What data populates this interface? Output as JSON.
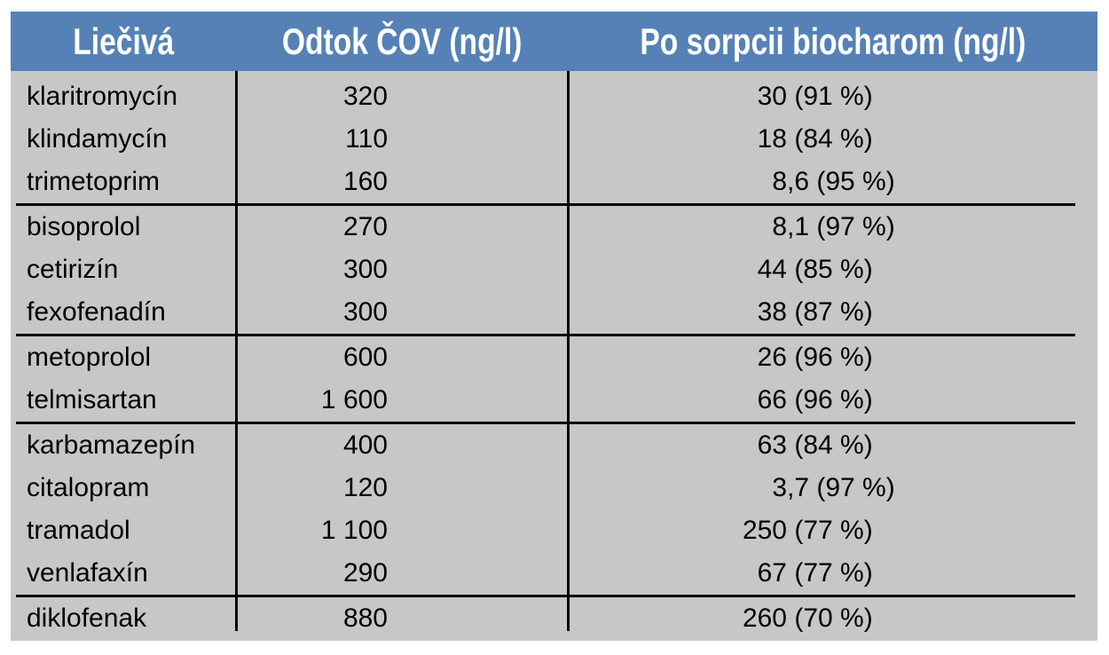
{
  "colors": {
    "page_bg": "#FFFFFF",
    "header_bg": "#5681B6",
    "header_text": "#FFFFFF",
    "body_bg": "#C7C7C7",
    "grid_line": "#000000",
    "body_text": "#000000"
  },
  "chart_data": {
    "type": "table",
    "columns": [
      "Liečivá",
      "Odtok ČOV (ng/l)",
      "Po sorpcii biocharom (ng/l)"
    ],
    "rows": [
      [
        "klaritromycín",
        "320",
        "30 (91 %)"
      ],
      [
        "klindamycín",
        "110",
        "18 (84 %)"
      ],
      [
        "trimetoprim",
        "160",
        "8,6 (95 %)"
      ],
      [
        "bisoprolol",
        "270",
        "8,1 (97 %)"
      ],
      [
        "cetirizín",
        "300",
        "44 (85 %)"
      ],
      [
        "fexofenadín",
        "300",
        "38 (87 %)"
      ],
      [
        "metoprolol",
        "600",
        "26 (96 %)"
      ],
      [
        "telmisartan",
        "1 600",
        "66 (96 %)"
      ],
      [
        "karbamazepín",
        "400",
        "63 (84 %)"
      ],
      [
        "citalopram",
        "120",
        "3,7 (97 %)"
      ],
      [
        "tramadol",
        "1 100",
        "250 (77 %)"
      ],
      [
        "venlafaxín",
        "290",
        "67 (77 %)"
      ],
      [
        "diklofenak",
        "880",
        "260 (70 %)"
      ]
    ],
    "row_group_sizes": [
      3,
      3,
      2,
      4,
      1
    ],
    "numeric": {
      "efflux_cov_ng_l": [
        320,
        110,
        160,
        270,
        300,
        300,
        600,
        1600,
        400,
        120,
        1100,
        290,
        880
      ],
      "after_biochar_sorption_ng_l": [
        30,
        18,
        8.6,
        8.1,
        44,
        38,
        26,
        66,
        63,
        3.7,
        250,
        67,
        260
      ],
      "removal_percent": [
        91,
        84,
        95,
        97,
        85,
        87,
        96,
        96,
        84,
        97,
        77,
        77,
        70
      ]
    }
  },
  "table": {
    "header": {
      "col1": "Liečivá",
      "col2": "Odtok ČOV (ng/l)",
      "col3": "Po sorpcii biocharom (ng/l)"
    },
    "groups": [
      {
        "rows": [
          {
            "name": "klaritromycín",
            "efflux": "320",
            "sorption_int": "30",
            "sorption_rest": " (91 %)"
          },
          {
            "name": "klindamycín",
            "efflux": "110",
            "sorption_int": "18",
            "sorption_rest": " (84 %)"
          },
          {
            "name": "trimetoprim",
            "efflux": "160",
            "sorption_int": "8",
            "sorption_rest": ",6 (95 %)"
          }
        ]
      },
      {
        "rows": [
          {
            "name": "bisoprolol",
            "efflux": "270",
            "sorption_int": "8",
            "sorption_rest": ",1 (97 %)"
          },
          {
            "name": "cetirizín",
            "efflux": "300",
            "sorption_int": "44",
            "sorption_rest": " (85 %)"
          },
          {
            "name": "fexofenadín",
            "efflux": "300",
            "sorption_int": "38",
            "sorption_rest": " (87 %)"
          }
        ]
      },
      {
        "rows": [
          {
            "name": "metoprolol",
            "efflux": "600",
            "sorption_int": "26",
            "sorption_rest": " (96 %)"
          },
          {
            "name": "telmisartan",
            "efflux": "1 600",
            "sorption_int": "66",
            "sorption_rest": " (96 %)"
          }
        ]
      },
      {
        "rows": [
          {
            "name": "karbamazepín",
            "efflux": "400",
            "sorption_int": "63",
            "sorption_rest": " (84 %)"
          },
          {
            "name": "citalopram",
            "efflux": "120",
            "sorption_int": "3",
            "sorption_rest": ",7 (97 %)"
          },
          {
            "name": "tramadol",
            "efflux": "1 100",
            "sorption_int": "250",
            "sorption_rest": " (77 %)"
          },
          {
            "name": "venlafaxín",
            "efflux": "290",
            "sorption_int": "67",
            "sorption_rest": " (77 %)"
          }
        ]
      },
      {
        "rows": [
          {
            "name": "diklofenak",
            "efflux": "880",
            "sorption_int": "260",
            "sorption_rest": " (70 %)"
          }
        ]
      }
    ]
  }
}
